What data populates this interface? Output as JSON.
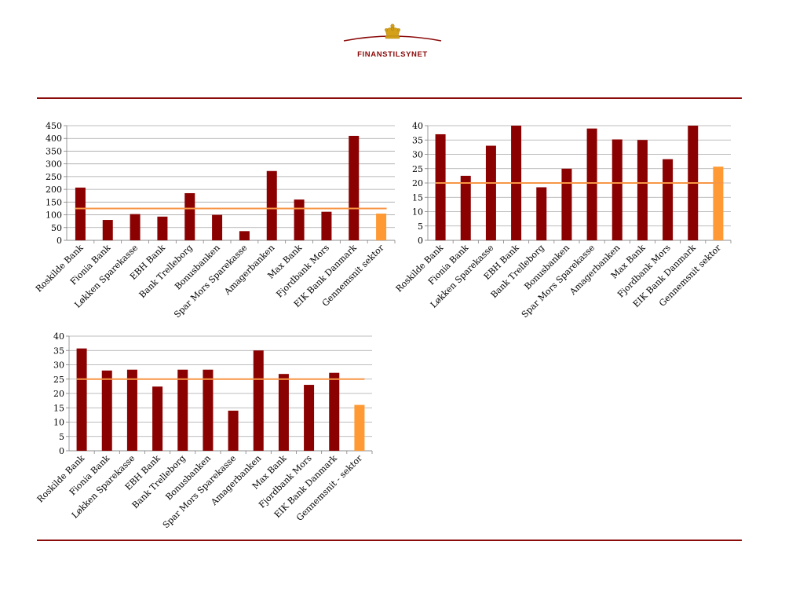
{
  "header": {
    "logo_text": "FINANSTILSYNET",
    "brand_color": "#8b0a0a"
  },
  "colors": {
    "bank_bar": "#8b0000",
    "sector_bar": "#ff9933",
    "reference_line": "#f79646",
    "divider": "#8b0a0a"
  },
  "chart_data": [
    {
      "type": "bar",
      "categories": [
        "Roskilde Bank",
        "Fionia Bank",
        "Løkken Sparekasse",
        "EBH Bank",
        "Bank Trelleborg",
        "Bonusbanken",
        "Spar Mors Sparekasse",
        "Amagerbanken",
        "Max Bank",
        "Fjordbank Mors",
        "EIK Bank Danmark",
        "Gennemsnit sektor"
      ],
      "values": [
        207,
        80,
        103,
        93,
        185,
        100,
        36,
        272,
        160,
        112,
        410,
        105
      ],
      "highlight_index": 11,
      "reference_line": 125,
      "ylim": [
        0,
        450
      ],
      "yticks": [
        0,
        50,
        100,
        150,
        200,
        250,
        300,
        350,
        400,
        450
      ],
      "grid": true
    },
    {
      "type": "bar",
      "categories": [
        "Roskilde Bank",
        "Fionia Bank",
        "Løkken Sparekasse",
        "EBH Bank",
        "Bank Trelleborg",
        "Bonusbanken",
        "Spar Mors Sparekasse",
        "Amagerbanken",
        "Max Bank",
        "Fjordbank Mors",
        "EIK Bank Danmark",
        "Gennemsnit sektor"
      ],
      "values": [
        37,
        22.5,
        33,
        40,
        18.5,
        25,
        39,
        35.2,
        35,
        28.3,
        40,
        25.7
      ],
      "highlight_index": 11,
      "reference_line": 20,
      "ylim": [
        0,
        40
      ],
      "yticks": [
        0,
        5,
        10,
        15,
        20,
        25,
        30,
        35,
        40
      ],
      "grid": true
    },
    {
      "type": "bar",
      "categories": [
        "Roskilde Bank",
        "Fionia Bank",
        "Løkken Sparekasse",
        "EBH Bank",
        "Bank Trelleborg",
        "Bonusbanken",
        "Spar Mors Sparekasse",
        "Amagerbanken",
        "Max Bank",
        "Fjordbank Mors",
        "EIK Bank Danmark",
        "Gennemsnit - sektor"
      ],
      "values": [
        35.7,
        28,
        28.3,
        22.4,
        28.3,
        28.3,
        14,
        35,
        26.8,
        23,
        27.2,
        16
      ],
      "highlight_index": 11,
      "reference_line": 25,
      "ylim": [
        0,
        40
      ],
      "yticks": [
        0,
        5,
        10,
        15,
        20,
        25,
        30,
        35,
        40
      ],
      "grid": true
    }
  ]
}
